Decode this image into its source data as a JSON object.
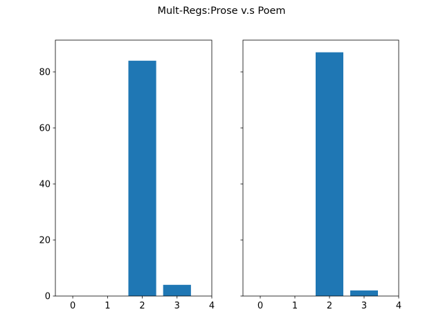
{
  "suptitle": "Mult-Regs:Prose v.s Poem",
  "bar_color": "#1f77b4",
  "chart_data": [
    {
      "type": "bar",
      "title": "",
      "xlabel": "",
      "ylabel": "",
      "x": [
        2,
        3
      ],
      "values": [
        84,
        4
      ],
      "xlim": [
        -0.5,
        4
      ],
      "ylim": [
        0,
        91.35
      ],
      "xticks": [
        "0",
        "1",
        "2",
        "3",
        "4"
      ],
      "yticks": [
        "0",
        "20",
        "40",
        "60",
        "80"
      ],
      "grid": false
    },
    {
      "type": "bar",
      "title": "",
      "xlabel": "",
      "ylabel": "",
      "x": [
        2,
        3
      ],
      "values": [
        87,
        2
      ],
      "xlim": [
        -0.5,
        4
      ],
      "ylim": [
        0,
        91.35
      ],
      "xticks": [
        "0",
        "1",
        "2",
        "3",
        "4"
      ],
      "yticks": [],
      "grid": false
    }
  ]
}
